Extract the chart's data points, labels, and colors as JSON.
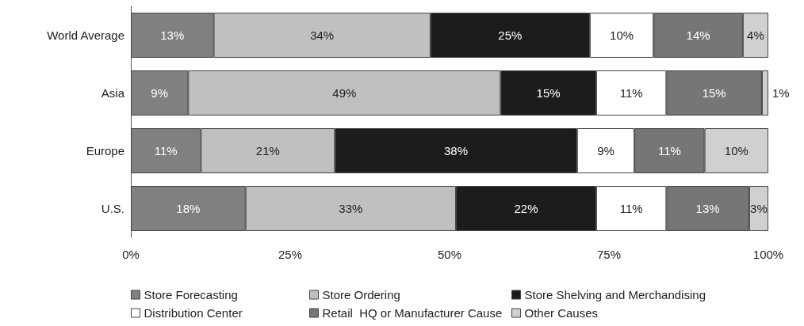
{
  "chart_data": {
    "type": "bar",
    "orientation": "horizontal",
    "stacked": true,
    "categories": [
      "World Average",
      "Asia",
      "Europe",
      "U.S."
    ],
    "series": [
      {
        "name": "Store Forecasting",
        "color": "#808080",
        "values": [
          13,
          9,
          11,
          18
        ],
        "value_labels": [
          "13%",
          "9%",
          "11%",
          "18%"
        ]
      },
      {
        "name": "Store Ordering",
        "color": "#c0c0c0",
        "values": [
          34,
          49,
          21,
          33
        ],
        "value_labels": [
          "34%",
          "49%",
          "21%",
          "33%"
        ]
      },
      {
        "name": "Store Shelving and Merchandising",
        "color": "#1c1c1c",
        "values": [
          25,
          15,
          38,
          22
        ],
        "value_labels": [
          "25%",
          "15%",
          "38%",
          "22%"
        ]
      },
      {
        "name": "Distribution Center",
        "color": "#ffffff",
        "values": [
          10,
          11,
          9,
          11
        ],
        "value_labels": [
          "10%",
          "11%",
          "9%",
          "11%"
        ]
      },
      {
        "name": "Retail  HQ or Manufacturer Cause",
        "color": "#767676",
        "values": [
          14,
          15,
          11,
          13
        ],
        "value_labels": [
          "14%",
          "15%",
          "11%",
          "13%"
        ]
      },
      {
        "name": "Other Causes",
        "color": "#d0d0d0",
        "values": [
          4,
          1,
          10,
          3
        ],
        "value_labels": [
          "4%",
          "1%",
          "10%",
          "3%"
        ]
      }
    ],
    "xlim": [
      0,
      100
    ],
    "xticks": [
      {
        "value": 0,
        "label": "0%"
      },
      {
        "value": 25,
        "label": "25%"
      },
      {
        "value": 50,
        "label": "50%"
      },
      {
        "value": 75,
        "label": "75%"
      },
      {
        "value": 100,
        "label": "100%"
      }
    ],
    "grid": false,
    "legend": "bottom"
  }
}
